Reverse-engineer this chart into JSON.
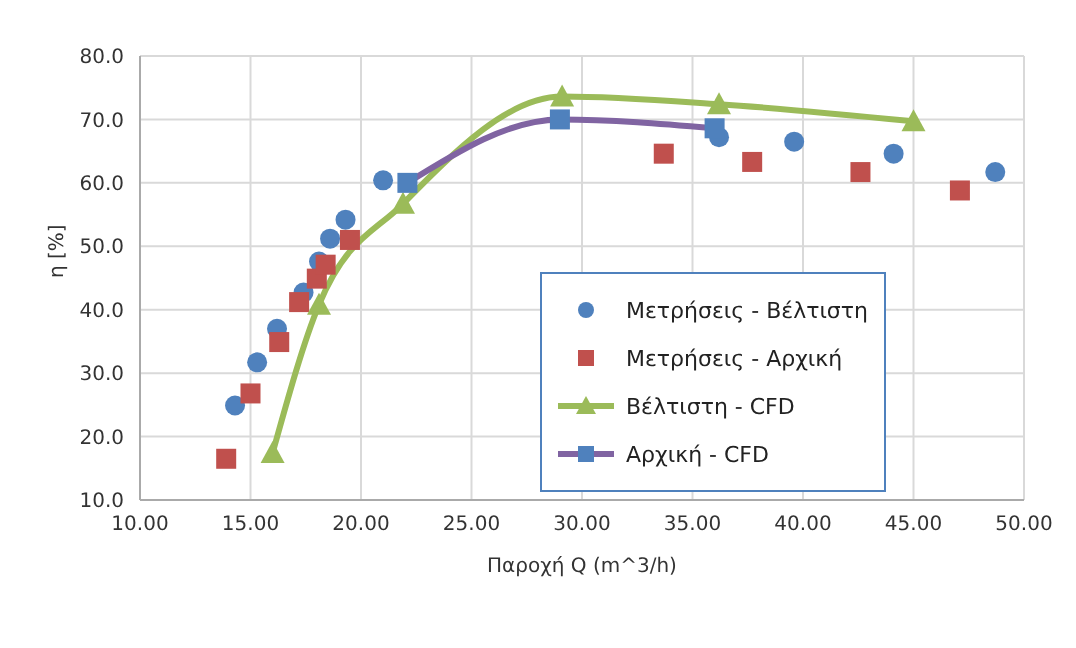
{
  "chart_data": {
    "type": "scatter",
    "xlabel": "Παροχή  Q  (m^3/h)",
    "ylabel": "η [%]",
    "xlim": [
      10,
      50
    ],
    "xticks": [
      {
        "value": 10,
        "label": "10.00"
      },
      {
        "value": 15,
        "label": "15.00"
      },
      {
        "value": 20,
        "label": "20.00"
      },
      {
        "value": 25,
        "label": "25.00"
      },
      {
        "value": 30,
        "label": "30.00"
      },
      {
        "value": 35,
        "label": "35.00"
      },
      {
        "value": 40,
        "label": "40.00"
      },
      {
        "value": 45,
        "label": "45.00"
      },
      {
        "value": 50,
        "label": "50.00"
      }
    ],
    "ylim": [
      10,
      80
    ],
    "yticks": [
      {
        "value": 10,
        "label": "10.0"
      },
      {
        "value": 20,
        "label": "20.0"
      },
      {
        "value": 30,
        "label": "30.0"
      },
      {
        "value": 40,
        "label": "40.0"
      },
      {
        "value": 50,
        "label": "50.0"
      },
      {
        "value": 60,
        "label": "60.0"
      },
      {
        "value": 70,
        "label": "70.0"
      },
      {
        "value": 80,
        "label": "80.0"
      }
    ],
    "grid": true,
    "legend": "right",
    "series": [
      {
        "name": "Μετρήσεις - Βέλτιστη",
        "marker": "circle",
        "color": "#4f81bd",
        "x": [
          14.3,
          15.3,
          16.2,
          17.4,
          18.1,
          18.6,
          19.3,
          21.0,
          36.2,
          39.6,
          44.1,
          48.7
        ],
        "values": [
          24.9,
          31.7,
          37.0,
          42.7,
          47.6,
          51.2,
          54.2,
          60.4,
          67.2,
          66.5,
          64.6,
          61.7
        ]
      },
      {
        "name": "Μετρήσεις - Αρχική",
        "marker": "square",
        "color": "#c0504d",
        "x": [
          13.9,
          15.0,
          16.3,
          17.2,
          18.0,
          18.4,
          19.5,
          33.7,
          37.7,
          42.6,
          47.1
        ],
        "values": [
          16.5,
          26.8,
          34.9,
          41.2,
          44.9,
          47.1,
          51.0,
          64.6,
          63.3,
          61.7,
          58.8
        ]
      },
      {
        "name": "Βέλτιστη - CFD",
        "type": "line",
        "marker": "triangle",
        "color": "#9bbb59",
        "x": [
          16.0,
          18.1,
          21.9,
          29.1,
          36.2,
          45.0
        ],
        "values": [
          17.4,
          40.8,
          56.7,
          73.6,
          72.4,
          69.7
        ]
      },
      {
        "name": "Αρχική - CFD",
        "type": "line",
        "marker": "square",
        "color": "#8064a2",
        "x": [
          22.1,
          29.0,
          36.0
        ],
        "values": [
          60.0,
          70.0,
          68.6
        ]
      }
    ]
  }
}
